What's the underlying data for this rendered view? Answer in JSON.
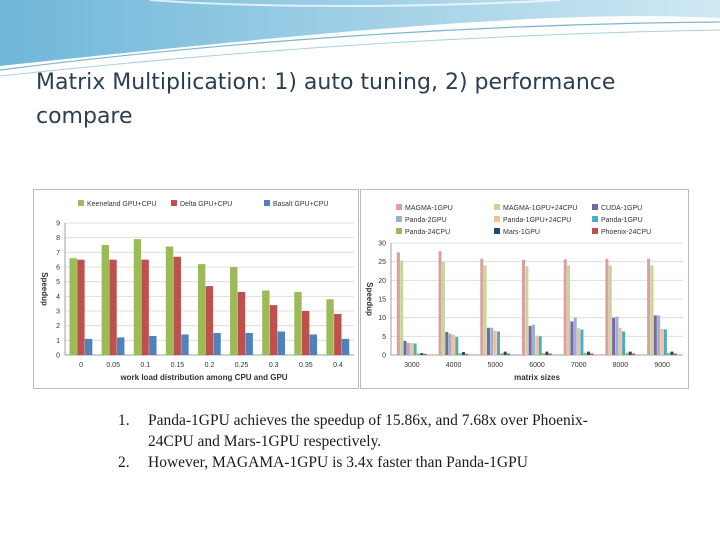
{
  "slide": {
    "title": "Matrix Multiplication: 1) auto tuning, 2) performance compare",
    "bullets": [
      {
        "num": "1.",
        "text": "Panda-1GPU achieves the speedup of 15.86x, and 7.68x over Phoenix-24CPU and Mars-1GPU respectively."
      },
      {
        "num": "2.",
        "text": "However, MAGAMA-1GPU is 3.4x faster than Panda-1GPU"
      }
    ]
  },
  "chart_data": [
    {
      "type": "bar",
      "title": "",
      "xlabel": "work load distribution among CPU and GPU",
      "ylabel": "Speedup",
      "ylim": [
        0,
        9
      ],
      "yticks": [
        0,
        1,
        2,
        3,
        4,
        5,
        6,
        7,
        8,
        9
      ],
      "legend_position": "top",
      "categories": [
        "0",
        "0.05",
        "0.1",
        "0.15",
        "0.2",
        "0.25",
        "0.3",
        "0.35",
        "0.4"
      ],
      "series": [
        {
          "name": "Keeneland GPU+CPU",
          "color": "#9bbb59",
          "values": [
            6.6,
            7.5,
            7.9,
            7.4,
            6.2,
            6.0,
            4.4,
            4.3,
            3.8
          ]
        },
        {
          "name": "Delta GPU+CPU",
          "color": "#c0504d",
          "values": [
            6.5,
            6.5,
            6.5,
            6.7,
            4.7,
            4.3,
            3.4,
            3.0,
            2.8
          ]
        },
        {
          "name": "Basalt GPU+CPU",
          "color": "#4f81bd",
          "values": [
            1.1,
            1.2,
            1.3,
            1.4,
            1.5,
            1.5,
            1.6,
            1.4,
            1.1
          ]
        }
      ]
    },
    {
      "type": "bar",
      "title": "",
      "xlabel": "matrix sizes",
      "ylabel": "Speedup",
      "ylim": [
        0,
        30
      ],
      "yticks": [
        0,
        5,
        10,
        15,
        20,
        25,
        30
      ],
      "legend_position": "top",
      "categories": [
        "3000",
        "4000",
        "5000",
        "6000",
        "7000",
        "8000",
        "9000"
      ],
      "series": [
        {
          "name": "MAGMA-1GPU",
          "color": "#dc9f9e",
          "values": [
            27.5,
            27.8,
            25.8,
            25.5,
            25.6,
            25.8,
            25.8
          ]
        },
        {
          "name": "MAGMA-1GPU+24CPU",
          "color": "#c4d79b",
          "values": [
            25.3,
            25.0,
            24.0,
            23.8,
            24.0,
            24.0,
            24.0
          ]
        },
        {
          "name": "CUDA-1GPU",
          "color": "#8064a2",
          "values": [
            3.8,
            6.2,
            7.3,
            7.8,
            9.0,
            10.0,
            10.6
          ]
        },
        {
          "name": "Panda-2GPU",
          "color": "#95b3d7",
          "values": [
            3.3,
            5.7,
            7.3,
            8.1,
            10.0,
            10.3,
            10.6
          ]
        },
        {
          "name": "Panda-1GPU+24CPU",
          "color": "#fabf8f",
          "values": [
            3.2,
            5.4,
            6.5,
            5.2,
            7.2,
            7.3,
            7.0
          ]
        },
        {
          "name": "Panda-1GPU",
          "color": "#4bacc6",
          "values": [
            3.1,
            4.8,
            6.3,
            5.0,
            6.8,
            6.3,
            6.9
          ]
        },
        {
          "name": "Panda-24CPU",
          "color": "#9bbb59",
          "values": [
            0.4,
            0.5,
            0.5,
            0.5,
            0.6,
            0.6,
            0.6
          ]
        },
        {
          "name": "Mars-1GPU",
          "color": "#1f497d",
          "values": [
            0.5,
            0.8,
            0.9,
            0.9,
            0.9,
            0.9,
            0.9
          ]
        },
        {
          "name": "Phoenix-24CPU",
          "color": "#c0504d",
          "values": [
            0.3,
            0.3,
            0.4,
            0.4,
            0.4,
            0.4,
            0.4
          ]
        }
      ]
    }
  ]
}
